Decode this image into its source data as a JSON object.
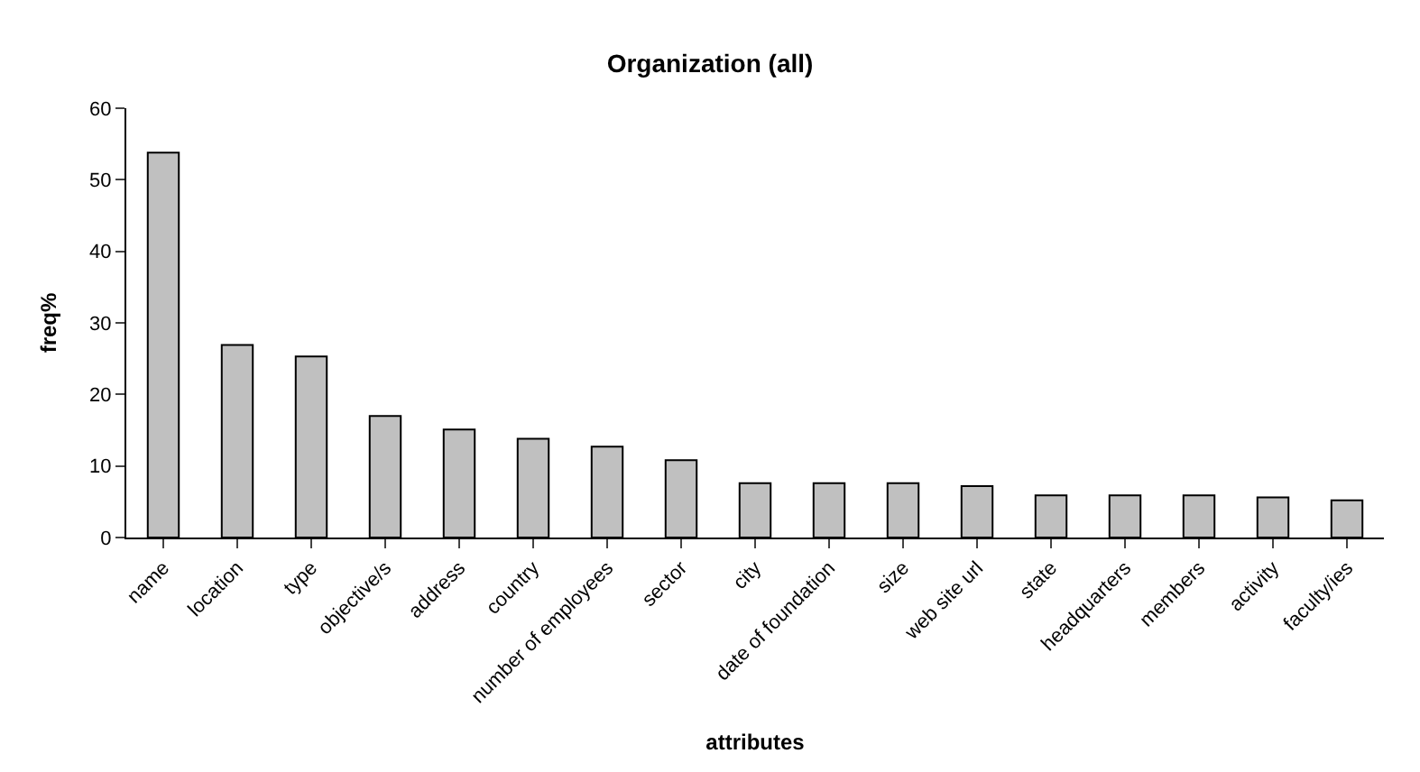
{
  "chart_data": {
    "type": "bar",
    "title": "Organization (all)",
    "xlabel": "attributes",
    "ylabel": "freq%",
    "categories": [
      "name",
      "location",
      "type",
      "objective/s",
      "address",
      "country",
      "number of employees",
      "sector",
      "city",
      "date of foundation",
      "size",
      "web site url",
      "state",
      "headquarters",
      "members",
      "activity",
      "faculty/ies"
    ],
    "values": [
      53.8,
      26.9,
      25.3,
      17.0,
      15.1,
      13.8,
      12.7,
      10.8,
      7.6,
      7.6,
      7.6,
      7.2,
      5.9,
      5.9,
      5.9,
      5.6,
      5.2
    ],
    "color": "#c0c0c0",
    "ylim": [
      0,
      60
    ],
    "yticks": [
      0,
      10,
      20,
      30,
      40,
      50,
      60
    ]
  }
}
